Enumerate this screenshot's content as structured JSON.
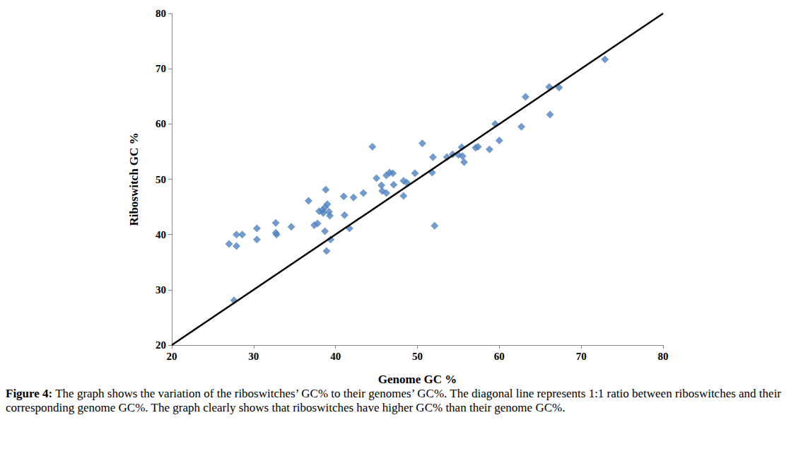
{
  "chart_data": {
    "type": "scatter",
    "xlabel": "Genome GC %",
    "ylabel": "Riboswitch GC %",
    "caption": "Figure 4: The graph shows the variation of the riboswitches’ GC% to their genomes’ GC%. The diagonal line represents 1:1 ratio between riboswitches and their corresponding genome GC%. The graph clearly shows that riboswitches have higher GC% than their genome GC%.",
    "xlim": [
      20,
      80
    ],
    "ylim": [
      20,
      80
    ],
    "xticks": [
      20,
      30,
      40,
      50,
      60,
      70,
      80
    ],
    "yticks": [
      20,
      30,
      40,
      50,
      60,
      70,
      80
    ],
    "grid": false,
    "series": [
      {
        "type": "scatter",
        "marker": "diamond",
        "color": "#4f81bd",
        "x": [
          27.0,
          27.6,
          27.9,
          27.9,
          28.6,
          30.4,
          30.4,
          32.7,
          32.7,
          32.8,
          34.6,
          36.7,
          37.4,
          37.8,
          38.0,
          38.4,
          38.5,
          38.7,
          38.8,
          38.7,
          38.9,
          39.0,
          39.2,
          39.3,
          39.4,
          41.0,
          41.1,
          41.7,
          42.2,
          43.4,
          44.5,
          45.0,
          45.6,
          45.7,
          46.2,
          46.2,
          46.6,
          47.0,
          47.1,
          48.3,
          48.3,
          48.7,
          49.7,
          50.6,
          51.8,
          51.9,
          52.1,
          53.6,
          54.3,
          55.0,
          55.4,
          55.5,
          55.7,
          57.1,
          57.4,
          58.8,
          59.5,
          60.0,
          62.7,
          63.2,
          66.1,
          66.2,
          67.3,
          72.9
        ],
        "values": [
          38.3,
          28.1,
          40.0,
          37.9,
          40.0,
          41.1,
          39.1,
          42.1,
          40.3,
          40.0,
          41.4,
          46.1,
          41.7,
          42.0,
          44.2,
          44.4,
          43.9,
          44.9,
          48.1,
          40.6,
          37.0,
          45.5,
          44.1,
          43.4,
          39.1,
          46.9,
          43.5,
          41.1,
          46.7,
          47.5,
          55.9,
          50.2,
          48.9,
          47.9,
          47.5,
          50.7,
          51.2,
          51.1,
          49.0,
          49.7,
          47.0,
          49.4,
          51.1,
          56.5,
          51.2,
          54.0,
          41.6,
          54.0,
          54.5,
          54.4,
          55.8,
          54.2,
          53.1,
          55.7,
          55.9,
          55.4,
          60.0,
          57.0,
          59.5,
          64.9,
          66.7,
          61.7,
          66.6,
          71.7
        ]
      },
      {
        "type": "line",
        "line_style": "solid",
        "color": "#000000",
        "x": [
          20,
          80
        ],
        "values": [
          20,
          80
        ]
      }
    ]
  }
}
